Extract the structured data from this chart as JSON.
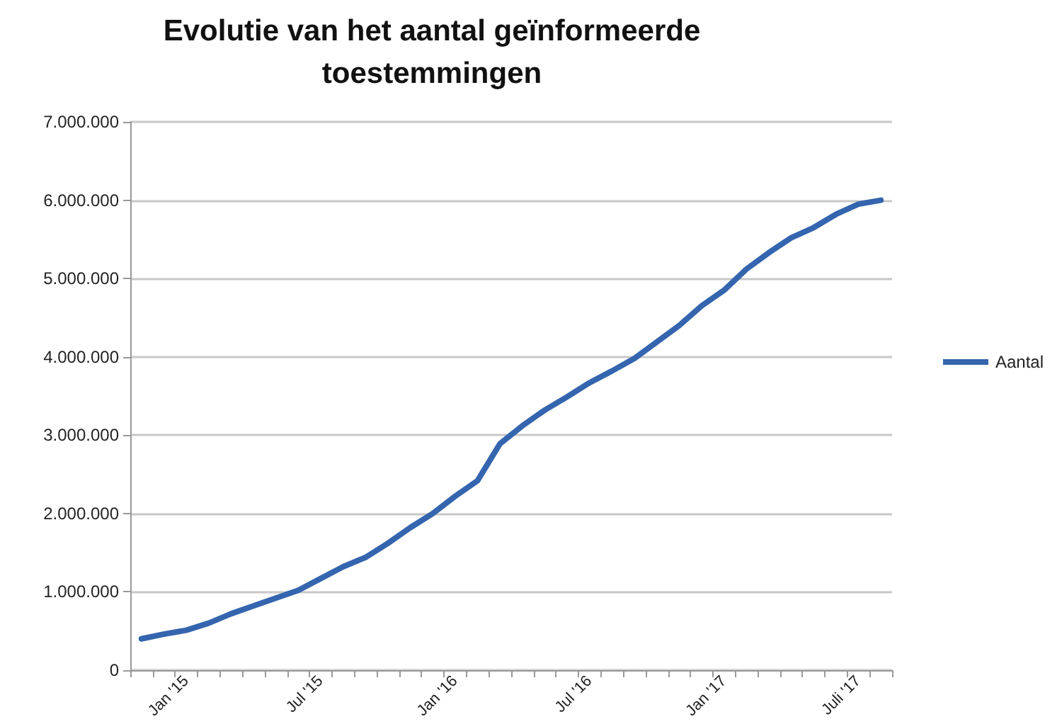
{
  "chart_data": {
    "type": "line",
    "title": "Evolutie van het aantal geïnformeerde\ntoestemmingen",
    "categories": [
      null,
      null,
      "Jan '15",
      null,
      null,
      null,
      null,
      null,
      "Jul '15",
      null,
      null,
      null,
      null,
      null,
      "Jan '16",
      null,
      null,
      null,
      null,
      null,
      "Jul '16",
      null,
      null,
      null,
      null,
      null,
      "Jan '17",
      null,
      null,
      null,
      null,
      null,
      "Juli '17",
      null
    ],
    "series": [
      {
        "name": "Aantal",
        "color": "#3465ae",
        "values": [
          400000,
          460000,
          510000,
          600000,
          720000,
          820000,
          920000,
          1020000,
          1170000,
          1320000,
          1440000,
          1620000,
          1820000,
          2000000,
          2220000,
          2420000,
          2890000,
          3120000,
          3320000,
          3490000,
          3670000,
          3820000,
          3980000,
          4190000,
          4400000,
          4650000,
          4850000,
          5120000,
          5330000,
          5520000,
          5650000,
          5820000,
          5950000,
          6000000
        ]
      }
    ],
    "ylim": [
      0,
      7000000
    ],
    "yticks": [
      {
        "value": 0,
        "label": "0"
      },
      {
        "value": 1000000,
        "label": "1.000.000"
      },
      {
        "value": 2000000,
        "label": "2.000.000"
      },
      {
        "value": 3000000,
        "label": "3.000.000"
      },
      {
        "value": 4000000,
        "label": "4.000.000"
      },
      {
        "value": 5000000,
        "label": "5.000.000"
      },
      {
        "value": 6000000,
        "label": "6.000.000"
      },
      {
        "value": 7000000,
        "label": "7.000.000"
      }
    ],
    "grid": "y",
    "legend": "right",
    "marker": "none",
    "line_style": "solid"
  }
}
